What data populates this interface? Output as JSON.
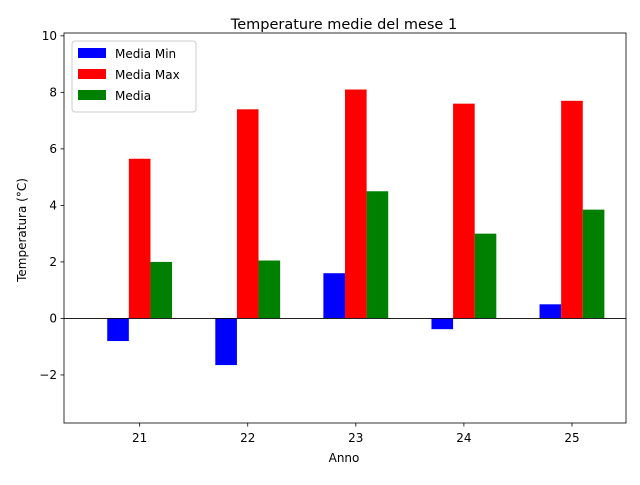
{
  "chart_data": {
    "type": "bar",
    "title": "Temperature medie del mese 1",
    "xlabel": "Anno",
    "ylabel": "Temperatura (°C)",
    "categories": [
      "21",
      "22",
      "23",
      "24",
      "25"
    ],
    "series": [
      {
        "name": "Media Min",
        "color": "#0000ff",
        "values": [
          -0.8,
          -1.65,
          1.6,
          -0.38,
          0.5
        ]
      },
      {
        "name": "Media Max",
        "color": "#ff0000",
        "values": [
          5.65,
          7.4,
          8.1,
          7.6,
          7.7
        ]
      },
      {
        "name": "Media",
        "color": "#008000",
        "values": [
          2.0,
          2.05,
          4.5,
          3.0,
          3.85
        ]
      }
    ],
    "ylim": [
      -3.7,
      10.1
    ],
    "yticks": [
      -2,
      0,
      2,
      4,
      6,
      8,
      10
    ],
    "ytick_labels": [
      "−2",
      "0",
      "2",
      "4",
      "6",
      "8",
      "10"
    ],
    "zero_line": true,
    "grid": false,
    "legend": "top-left"
  }
}
